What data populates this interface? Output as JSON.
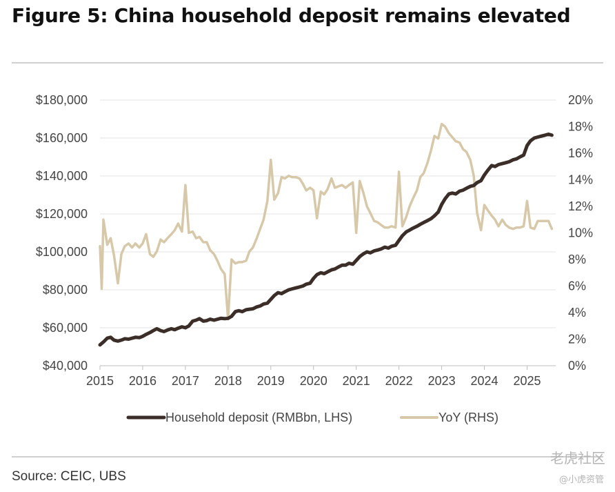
{
  "title": "Figure 5: China household deposit remains elevated",
  "source": "Source: CEIC, UBS",
  "watermark": {
    "logo_text": "老虎社区",
    "sub_text": "@小虎资管"
  },
  "chart_data": {
    "type": "line",
    "title": "Figure 5: China household deposit remains elevated",
    "x_tick_labels": [
      "2015",
      "2016",
      "2017",
      "2018",
      "2019",
      "2020",
      "2021",
      "2022",
      "2023",
      "2024",
      "2025"
    ],
    "x_range": [
      2015.0,
      2025.67
    ],
    "y_left": {
      "range": [
        40000,
        180000
      ],
      "tick_values": [
        40000,
        60000,
        80000,
        100000,
        120000,
        140000,
        160000,
        180000
      ],
      "tick_labels": [
        "$40,000",
        "$60,000",
        "$80,000",
        "$100,000",
        "$120,000",
        "$140,000",
        "$160,000",
        "$180,000"
      ]
    },
    "y_right": {
      "range": [
        0,
        20
      ],
      "tick_values": [
        0,
        2,
        4,
        6,
        8,
        10,
        12,
        14,
        16,
        18,
        20
      ],
      "tick_labels": [
        "0%",
        "2%",
        "4%",
        "6%",
        "8%",
        "10%",
        "12%",
        "14%",
        "16%",
        "18%",
        "20%"
      ]
    },
    "grid": "horizontal",
    "legend_position": "bottom",
    "series": [
      {
        "name": "Household deposit (RMBbn, LHS)",
        "axis": "left",
        "color": "#3b2e28",
        "points": [
          [
            2015.0,
            51000
          ],
          [
            2015.08,
            52500
          ],
          [
            2015.17,
            54500
          ],
          [
            2015.25,
            55000
          ],
          [
            2015.33,
            53500
          ],
          [
            2015.42,
            53000
          ],
          [
            2015.5,
            53500
          ],
          [
            2015.58,
            54200
          ],
          [
            2015.67,
            54000
          ],
          [
            2015.75,
            54500
          ],
          [
            2015.83,
            55000
          ],
          [
            2015.92,
            54800
          ],
          [
            2016.0,
            55500
          ],
          [
            2016.08,
            56500
          ],
          [
            2016.17,
            57500
          ],
          [
            2016.25,
            58500
          ],
          [
            2016.33,
            59500
          ],
          [
            2016.42,
            58500
          ],
          [
            2016.5,
            58000
          ],
          [
            2016.58,
            58800
          ],
          [
            2016.67,
            59500
          ],
          [
            2016.75,
            59000
          ],
          [
            2016.83,
            59800
          ],
          [
            2016.92,
            60500
          ],
          [
            2017.0,
            60000
          ],
          [
            2017.08,
            61000
          ],
          [
            2017.17,
            63500
          ],
          [
            2017.25,
            64000
          ],
          [
            2017.33,
            64800
          ],
          [
            2017.42,
            63500
          ],
          [
            2017.5,
            63800
          ],
          [
            2017.58,
            64500
          ],
          [
            2017.67,
            64000
          ],
          [
            2017.75,
            64500
          ],
          [
            2017.83,
            65000
          ],
          [
            2017.92,
            64800
          ],
          [
            2018.0,
            65000
          ],
          [
            2018.08,
            66000
          ],
          [
            2018.17,
            68500
          ],
          [
            2018.25,
            69000
          ],
          [
            2018.33,
            68500
          ],
          [
            2018.42,
            69500
          ],
          [
            2018.5,
            69800
          ],
          [
            2018.58,
            70000
          ],
          [
            2018.67,
            71000
          ],
          [
            2018.75,
            71500
          ],
          [
            2018.83,
            72500
          ],
          [
            2018.92,
            73000
          ],
          [
            2019.0,
            75000
          ],
          [
            2019.08,
            77000
          ],
          [
            2019.17,
            78500
          ],
          [
            2019.25,
            78000
          ],
          [
            2019.33,
            79000
          ],
          [
            2019.42,
            80000
          ],
          [
            2019.5,
            80500
          ],
          [
            2019.58,
            81000
          ],
          [
            2019.67,
            81500
          ],
          [
            2019.75,
            82000
          ],
          [
            2019.83,
            83000
          ],
          [
            2019.92,
            83500
          ],
          [
            2020.0,
            86000
          ],
          [
            2020.08,
            88000
          ],
          [
            2020.17,
            89000
          ],
          [
            2020.25,
            88500
          ],
          [
            2020.33,
            89500
          ],
          [
            2020.42,
            90500
          ],
          [
            2020.5,
            91000
          ],
          [
            2020.58,
            92000
          ],
          [
            2020.67,
            93000
          ],
          [
            2020.75,
            93000
          ],
          [
            2020.83,
            94000
          ],
          [
            2020.92,
            93500
          ],
          [
            2021.0,
            95500
          ],
          [
            2021.08,
            97500
          ],
          [
            2021.17,
            99000
          ],
          [
            2021.25,
            100000
          ],
          [
            2021.33,
            99500
          ],
          [
            2021.42,
            100500
          ],
          [
            2021.5,
            101000
          ],
          [
            2021.58,
            101500
          ],
          [
            2021.67,
            102500
          ],
          [
            2021.75,
            102000
          ],
          [
            2021.83,
            103000
          ],
          [
            2021.92,
            103500
          ],
          [
            2022.0,
            106000
          ],
          [
            2022.08,
            108500
          ],
          [
            2022.17,
            110500
          ],
          [
            2022.25,
            111500
          ],
          [
            2022.33,
            112500
          ],
          [
            2022.42,
            113500
          ],
          [
            2022.5,
            114500
          ],
          [
            2022.58,
            115500
          ],
          [
            2022.67,
            116500
          ],
          [
            2022.75,
            117500
          ],
          [
            2022.83,
            119000
          ],
          [
            2022.92,
            121000
          ],
          [
            2023.0,
            125000
          ],
          [
            2023.08,
            128000
          ],
          [
            2023.17,
            130500
          ],
          [
            2023.25,
            131000
          ],
          [
            2023.33,
            130500
          ],
          [
            2023.42,
            132000
          ],
          [
            2023.5,
            132500
          ],
          [
            2023.58,
            133500
          ],
          [
            2023.67,
            134500
          ],
          [
            2023.75,
            135000
          ],
          [
            2023.83,
            136500
          ],
          [
            2023.92,
            137500
          ],
          [
            2024.0,
            140500
          ],
          [
            2024.08,
            143000
          ],
          [
            2024.17,
            145500
          ],
          [
            2024.25,
            145000
          ],
          [
            2024.33,
            146000
          ],
          [
            2024.42,
            146500
          ],
          [
            2024.5,
            147000
          ],
          [
            2024.58,
            147500
          ],
          [
            2024.67,
            148500
          ],
          [
            2024.75,
            149000
          ],
          [
            2024.83,
            150000
          ],
          [
            2024.92,
            151000
          ],
          [
            2025.0,
            156000
          ],
          [
            2025.08,
            158500
          ],
          [
            2025.17,
            160000
          ],
          [
            2025.25,
            160500
          ],
          [
            2025.33,
            161000
          ],
          [
            2025.42,
            161500
          ],
          [
            2025.5,
            162000
          ],
          [
            2025.58,
            161500
          ]
        ]
      },
      {
        "name": "YoY (RHS)",
        "axis": "right",
        "color": "#d6c8a8",
        "points": [
          [
            2015.0,
            9.0
          ],
          [
            2015.04,
            5.8
          ],
          [
            2015.08,
            11.0
          ],
          [
            2015.17,
            9.1
          ],
          [
            2015.25,
            9.6
          ],
          [
            2015.33,
            8.3
          ],
          [
            2015.42,
            6.2
          ],
          [
            2015.5,
            8.4
          ],
          [
            2015.58,
            9.0
          ],
          [
            2015.67,
            9.2
          ],
          [
            2015.75,
            8.9
          ],
          [
            2015.83,
            9.2
          ],
          [
            2015.92,
            8.9
          ],
          [
            2016.0,
            9.2
          ],
          [
            2016.08,
            9.9
          ],
          [
            2016.17,
            8.4
          ],
          [
            2016.25,
            8.2
          ],
          [
            2016.33,
            8.6
          ],
          [
            2016.42,
            9.5
          ],
          [
            2016.5,
            9.3
          ],
          [
            2016.58,
            9.6
          ],
          [
            2016.67,
            9.9
          ],
          [
            2016.75,
            10.2
          ],
          [
            2016.83,
            10.7
          ],
          [
            2016.92,
            10.1
          ],
          [
            2017.0,
            13.6
          ],
          [
            2017.08,
            10.0
          ],
          [
            2017.17,
            10.1
          ],
          [
            2017.25,
            9.6
          ],
          [
            2017.33,
            9.7
          ],
          [
            2017.42,
            9.3
          ],
          [
            2017.5,
            9.3
          ],
          [
            2017.58,
            8.7
          ],
          [
            2017.67,
            8.4
          ],
          [
            2017.75,
            7.9
          ],
          [
            2017.83,
            7.3
          ],
          [
            2017.92,
            6.9
          ],
          [
            2018.0,
            3.5
          ],
          [
            2018.08,
            8.0
          ],
          [
            2018.17,
            7.7
          ],
          [
            2018.25,
            7.8
          ],
          [
            2018.33,
            7.8
          ],
          [
            2018.42,
            7.9
          ],
          [
            2018.5,
            8.6
          ],
          [
            2018.58,
            8.9
          ],
          [
            2018.67,
            9.6
          ],
          [
            2018.75,
            10.3
          ],
          [
            2018.83,
            11.0
          ],
          [
            2018.92,
            12.4
          ],
          [
            2019.0,
            15.5
          ],
          [
            2019.08,
            12.5
          ],
          [
            2019.17,
            13.0
          ],
          [
            2019.25,
            14.2
          ],
          [
            2019.33,
            14.1
          ],
          [
            2019.42,
            14.3
          ],
          [
            2019.5,
            14.2
          ],
          [
            2019.58,
            14.2
          ],
          [
            2019.67,
            14.1
          ],
          [
            2019.75,
            13.7
          ],
          [
            2019.83,
            13.2
          ],
          [
            2019.92,
            13.4
          ],
          [
            2020.0,
            13.2
          ],
          [
            2020.08,
            11.1
          ],
          [
            2020.17,
            13.1
          ],
          [
            2020.25,
            12.9
          ],
          [
            2020.33,
            13.3
          ],
          [
            2020.42,
            14.1
          ],
          [
            2020.5,
            13.4
          ],
          [
            2020.58,
            13.5
          ],
          [
            2020.67,
            13.6
          ],
          [
            2020.75,
            13.4
          ],
          [
            2020.83,
            13.6
          ],
          [
            2020.92,
            13.8
          ],
          [
            2021.0,
            10.0
          ],
          [
            2021.08,
            13.9
          ],
          [
            2021.17,
            13.0
          ],
          [
            2021.25,
            12.0
          ],
          [
            2021.33,
            11.5
          ],
          [
            2021.42,
            10.9
          ],
          [
            2021.5,
            10.8
          ],
          [
            2021.58,
            10.6
          ],
          [
            2021.67,
            10.4
          ],
          [
            2021.75,
            10.4
          ],
          [
            2021.83,
            10.5
          ],
          [
            2021.92,
            10.4
          ],
          [
            2022.0,
            14.6
          ],
          [
            2022.08,
            10.5
          ],
          [
            2022.17,
            11.2
          ],
          [
            2022.25,
            12.0
          ],
          [
            2022.33,
            12.6
          ],
          [
            2022.42,
            13.2
          ],
          [
            2022.5,
            14.2
          ],
          [
            2022.58,
            14.5
          ],
          [
            2022.67,
            15.3
          ],
          [
            2022.75,
            16.2
          ],
          [
            2022.83,
            17.3
          ],
          [
            2022.92,
            17.1
          ],
          [
            2023.0,
            18.2
          ],
          [
            2023.08,
            18.0
          ],
          [
            2023.17,
            17.5
          ],
          [
            2023.25,
            17.2
          ],
          [
            2023.33,
            16.9
          ],
          [
            2023.42,
            16.8
          ],
          [
            2023.5,
            16.3
          ],
          [
            2023.58,
            16.1
          ],
          [
            2023.67,
            15.5
          ],
          [
            2023.75,
            14.3
          ],
          [
            2023.83,
            11.5
          ],
          [
            2023.92,
            10.2
          ],
          [
            2024.0,
            12.1
          ],
          [
            2024.08,
            11.7
          ],
          [
            2024.17,
            11.3
          ],
          [
            2024.25,
            11.0
          ],
          [
            2024.33,
            10.5
          ],
          [
            2024.42,
            11.0
          ],
          [
            2024.5,
            10.6
          ],
          [
            2024.58,
            10.4
          ],
          [
            2024.67,
            10.3
          ],
          [
            2024.75,
            10.4
          ],
          [
            2024.83,
            10.4
          ],
          [
            2024.92,
            10.5
          ],
          [
            2025.0,
            12.4
          ],
          [
            2025.08,
            10.4
          ],
          [
            2025.17,
            10.3
          ],
          [
            2025.25,
            10.9
          ],
          [
            2025.33,
            10.9
          ],
          [
            2025.42,
            10.9
          ],
          [
            2025.5,
            10.9
          ],
          [
            2025.58,
            10.3
          ]
        ]
      }
    ]
  }
}
